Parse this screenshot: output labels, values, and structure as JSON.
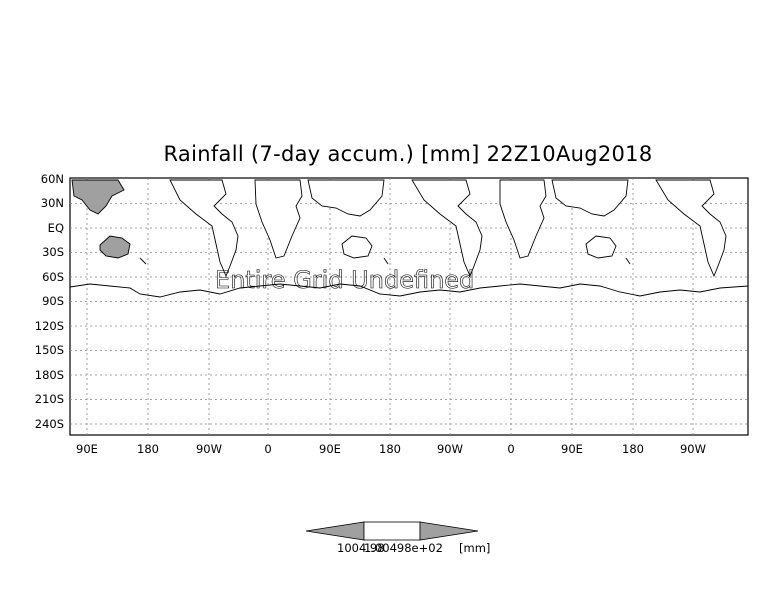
{
  "title": "Rainfall (7-day accum.) [mm] 22Z10Aug2018",
  "overlay_message": "Entire Grid Undefined",
  "y_axis_labels": [
    "60N",
    "30N",
    "EQ",
    "30S",
    "60S",
    "90S",
    "120S",
    "150S",
    "180S",
    "210S",
    "240S"
  ],
  "x_axis_labels": [
    "90E",
    "180",
    "90W",
    "0",
    "90E",
    "180",
    "90W",
    "0",
    "90E",
    "180",
    "90W"
  ],
  "colorbar": {
    "label_overlap_1": "1004.98",
    "label_overlap_2": "1.00498e+02",
    "unit": "[mm]"
  },
  "colors": {
    "land": "#ffffff",
    "highlight_land": "#a0a0a0",
    "frame": "#000000",
    "grid": "#808080"
  }
}
